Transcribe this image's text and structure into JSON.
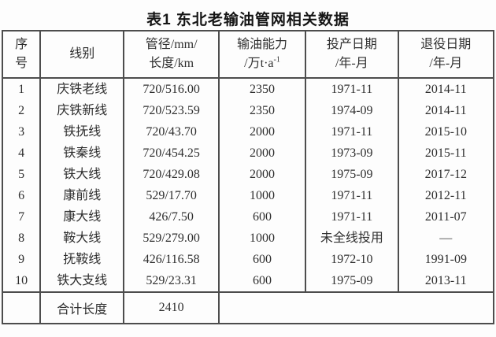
{
  "title": "表1 东北老输油管网相关数据",
  "table": {
    "columns": [
      {
        "id": "no",
        "line1": "序",
        "line2": "号"
      },
      {
        "id": "line",
        "line1": "线别"
      },
      {
        "id": "spec",
        "line1": "管径/mm/",
        "line2": "长度/km"
      },
      {
        "id": "cap",
        "line1": "输油能力",
        "line2": "/万t·a",
        "line2_sup": "-1"
      },
      {
        "id": "comm",
        "line1": "投产日期",
        "line2": "/年-月"
      },
      {
        "id": "ret",
        "line1": "退役日期",
        "line2": "/年-月"
      }
    ],
    "rows": [
      {
        "no": "1",
        "line": "庆铁老线",
        "spec": "720/516.00",
        "cap": "2350",
        "comm": "1971-11",
        "ret": "2014-11"
      },
      {
        "no": "2",
        "line": "庆铁新线",
        "spec": "720/523.59",
        "cap": "2350",
        "comm": "1974-09",
        "ret": "2014-11"
      },
      {
        "no": "3",
        "line": "铁抚线",
        "spec": "720/43.70",
        "cap": "2000",
        "comm": "1971-11",
        "ret": "2015-10"
      },
      {
        "no": "4",
        "line": "铁秦线",
        "spec": "720/454.25",
        "cap": "2000",
        "comm": "1973-09",
        "ret": "2015-11"
      },
      {
        "no": "5",
        "line": "铁大线",
        "spec": "720/429.08",
        "cap": "2000",
        "comm": "1975-09",
        "ret": "2017-12"
      },
      {
        "no": "6",
        "line": "康前线",
        "spec": "529/17.70",
        "cap": "1000",
        "comm": "1971-11",
        "ret": "2012-11"
      },
      {
        "no": "7",
        "line": "康大线",
        "spec": "426/7.50",
        "cap": "600",
        "comm": "1971-11",
        "ret": "2011-07"
      },
      {
        "no": "8",
        "line": "鞍大线",
        "spec": "529/279.00",
        "cap": "1000",
        "comm": "未全线投用",
        "ret": "—"
      },
      {
        "no": "9",
        "line": "抚鞍线",
        "spec": "426/116.58",
        "cap": "600",
        "comm": "1972-10",
        "ret": "1991-09"
      },
      {
        "no": "10",
        "line": "铁大支线",
        "spec": "529/23.31",
        "cap": "600",
        "comm": "1975-09",
        "ret": "2013-11"
      }
    ],
    "summary": {
      "no": "",
      "label": "合计长度",
      "total_length": "2410",
      "rest": ""
    }
  }
}
